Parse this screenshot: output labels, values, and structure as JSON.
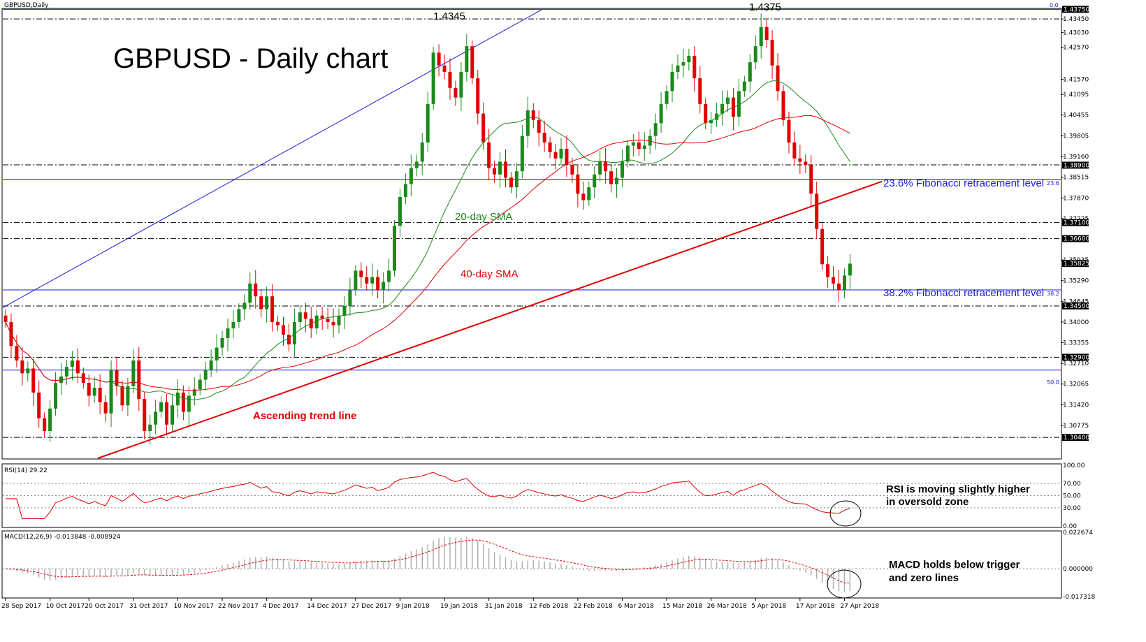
{
  "header": {
    "symbol_label": "GBPUSD,Daily"
  },
  "title": "GBPUSD - Daily chart",
  "peaks": {
    "left": "1.4345",
    "right": "1.4375"
  },
  "annotations": {
    "sma20": "20-day SMA",
    "sma40": "40-day SMA",
    "trend": "Ascending trend line",
    "fib236": "23.6% Fibonacci retracement level",
    "fib382": "38.2% Fibonacci retracement level",
    "rsi_line1": "RSI is moving slightly higher",
    "rsi_line2": "in oversold zone",
    "macd_line1": "MACD holds below trigger",
    "macd_line2": "and zero lines"
  },
  "fib_markers": {
    "top": "0.0",
    "f236": "23.6",
    "f382": "38.2",
    "f500": "50.0"
  },
  "colors": {
    "bull": "#1a8a1a",
    "bear": "#e00000",
    "sma20": "#1a8a1a",
    "sma40": "#e00000",
    "fib": "#1a1adb",
    "trend": "#e00000",
    "level": "#000000",
    "channel": "#1a1adb"
  },
  "chart_data": [
    {
      "type": "candlestick",
      "title": "GBPUSD - Daily chart",
      "y_range": [
        1.2975,
        1.4378
      ],
      "price_ticks": [
        "1.43450",
        "1.43030",
        "1.42570",
        "1.41570",
        "1.41095",
        "1.40455",
        "1.39805",
        "1.39160",
        "1.38515",
        "1.37870",
        "1.37225",
        "1.35935",
        "1.35290",
        "1.34645",
        "1.34000",
        "1.33355",
        "1.32710",
        "1.32065",
        "1.31420",
        "1.30775"
      ],
      "price_tick_values": [
        1.4345,
        1.4303,
        1.4257,
        1.4157,
        1.41095,
        1.40455,
        1.39805,
        1.3916,
        1.38515,
        1.3787,
        1.37225,
        1.35935,
        1.3529,
        1.34645,
        1.34,
        1.33355,
        1.3271,
        1.32065,
        1.3142,
        1.30775
      ],
      "highlighted_levels": [
        {
          "value": 1.4375,
          "label": "1.43750"
        },
        {
          "value": 1.3889,
          "label": "1.38900"
        },
        {
          "value": 1.371,
          "label": "1.37100"
        },
        {
          "value": 1.366,
          "label": "1.36600"
        },
        {
          "value": 1.35825,
          "label": "1.35825"
        },
        {
          "value": 1.345,
          "label": "1.34500"
        },
        {
          "value": 1.329,
          "label": "1.32900"
        },
        {
          "value": 1.304,
          "label": "1.30400"
        }
      ],
      "dashed_levels": [
        1.4345,
        1.389,
        1.371,
        1.366,
        1.345,
        1.329,
        1.304
      ],
      "fib_levels": {
        "top": 1.4375,
        "f236": 1.3845,
        "f382": 1.35,
        "f500": 1.325
      },
      "x_labels": [
        "28 Sep 2017",
        "10 Oct 2017",
        "20 Oct 2017",
        "31 Oct 2017",
        "10 Nov 2017",
        "22 Nov 2017",
        "4 Dec 2017",
        "14 Dec 2017",
        "27 Dec 2017",
        "9 Jan 2018",
        "19 Jan 2018",
        "31 Jan 2018",
        "12 Feb 2018",
        "22 Feb 2018",
        "6 Mar 2018",
        "15 Mar 2018",
        "26 Mar 2018",
        "5 Apr 2018",
        "17 Apr 2018",
        "27 Apr 2018"
      ],
      "x_label_index": [
        0,
        8,
        15,
        23,
        31,
        39,
        47,
        55,
        63,
        71,
        79,
        87,
        95,
        103,
        111,
        119,
        127,
        135,
        143,
        151
      ],
      "close": [
        1.34,
        1.3325,
        1.328,
        1.324,
        1.3255,
        1.318,
        1.31,
        1.306,
        1.313,
        1.321,
        1.323,
        1.326,
        1.328,
        1.324,
        1.321,
        1.317,
        1.3195,
        1.315,
        1.3115,
        1.325,
        1.32,
        1.314,
        1.32,
        1.328,
        1.316,
        1.306,
        1.308,
        1.312,
        1.315,
        1.308,
        1.314,
        1.318,
        1.312,
        1.317,
        1.319,
        1.322,
        1.325,
        1.328,
        1.332,
        1.335,
        1.338,
        1.34,
        1.344,
        1.346,
        1.352,
        1.348,
        1.344,
        1.348,
        1.34,
        1.339,
        1.336,
        1.333,
        1.34,
        1.343,
        1.341,
        1.338,
        1.342,
        1.341,
        1.34,
        1.339,
        1.342,
        1.345,
        1.35,
        1.356,
        1.354,
        1.352,
        1.354,
        1.35,
        1.3525,
        1.356,
        1.37,
        1.379,
        1.383,
        1.388,
        1.39,
        1.396,
        1.408,
        1.424,
        1.42,
        1.418,
        1.413,
        1.41,
        1.418,
        1.426,
        1.416,
        1.405,
        1.396,
        1.388,
        1.386,
        1.39,
        1.385,
        1.382,
        1.387,
        1.398,
        1.406,
        1.403,
        1.399,
        1.396,
        1.393,
        1.391,
        1.394,
        1.389,
        1.386,
        1.38,
        1.378,
        1.382,
        1.386,
        1.39,
        1.387,
        1.383,
        1.385,
        1.39,
        1.395,
        1.396,
        1.394,
        1.395,
        1.398,
        1.402,
        1.408,
        1.412,
        1.418,
        1.42,
        1.421,
        1.423,
        1.416,
        1.408,
        1.402,
        1.403,
        1.405,
        1.408,
        1.41,
        1.404,
        1.412,
        1.415,
        1.421,
        1.426,
        1.432,
        1.428,
        1.42,
        1.412,
        1.403,
        1.396,
        1.391,
        1.39,
        1.389,
        1.38,
        1.369,
        1.358,
        1.354,
        1.352,
        1.35,
        1.3545,
        1.3582
      ],
      "indicators": [
        "20-day SMA",
        "40-day SMA"
      ]
    },
    {
      "type": "line",
      "title": "RSI(14) 29.22",
      "ylim": [
        0,
        100
      ],
      "ticks": [
        "100.00",
        "70.00",
        "50.00",
        "30.00",
        "0.00"
      ],
      "tick_values": [
        100,
        70,
        50,
        30,
        0
      ],
      "current": 29.22
    },
    {
      "type": "bar",
      "title": "MACD(12,26,9) -0.013848 -0.008924",
      "ylim": [
        -0.017318,
        0.022674
      ],
      "ticks": [
        "0.022674",
        "0.000000",
        "-0.017318"
      ],
      "tick_values": [
        0.022674,
        0,
        -0.017318
      ],
      "macd": -0.013848,
      "signal": -0.008924
    }
  ]
}
